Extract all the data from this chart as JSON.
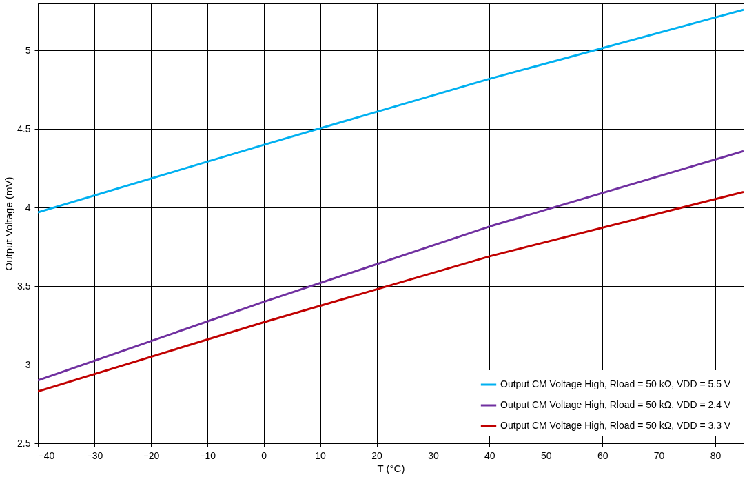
{
  "chart_data": {
    "type": "line",
    "xlabel": "T (°C)",
    "ylabel": "Output Voltage (mV)",
    "xlim": [
      -40,
      85
    ],
    "xticks": [
      -40,
      -30,
      -20,
      -10,
      0,
      10,
      20,
      30,
      40,
      50,
      60,
      70,
      80
    ],
    "ylim": [
      2.5,
      5.3
    ],
    "yticks": [
      2.5,
      3,
      3.5,
      4,
      4.5,
      5
    ],
    "grid": true,
    "legend": "bottom right",
    "marker": "none",
    "line_style": "solid",
    "x": [
      -40,
      0,
      40,
      85
    ],
    "series": [
      {
        "name": "Output CM Voltage High, Rload = 50 kΩ, VDD = 5.5 V",
        "color": "#00b0f0",
        "values": [
          3.97,
          4.4,
          4.82,
          5.26
        ]
      },
      {
        "name": "Output CM Voltage High, Rload = 50 kΩ, VDD = 2.4 V",
        "color": "#7030a0",
        "values": [
          2.9,
          3.4,
          3.88,
          4.36
        ]
      },
      {
        "name": "Output CM Voltage High, Rload = 50 kΩ, VDD = 3.3 V",
        "color": "#c00000",
        "values": [
          2.83,
          3.27,
          3.69,
          4.1
        ]
      }
    ]
  }
}
